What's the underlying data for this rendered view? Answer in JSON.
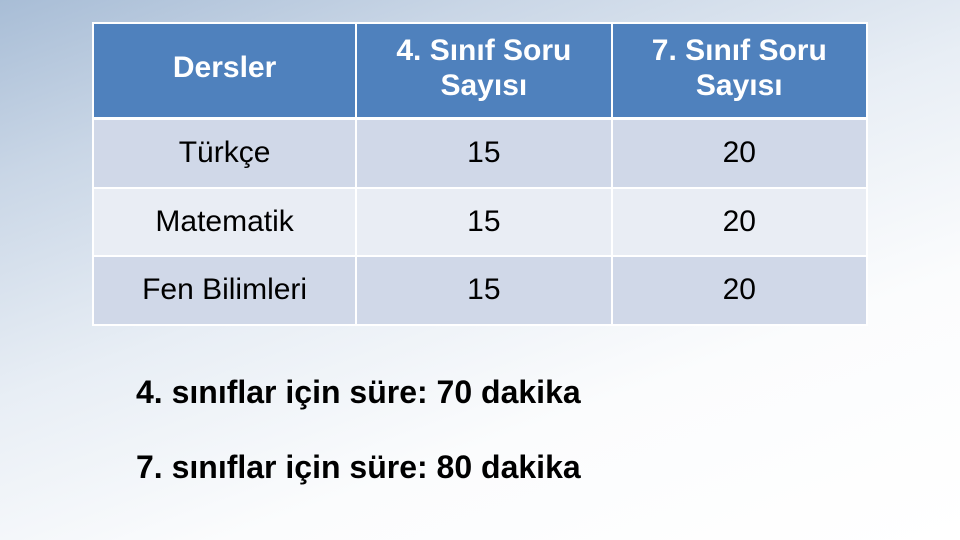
{
  "table": {
    "type": "table",
    "columns": [
      "Dersler",
      "4. Sınıf Soru Sayısı",
      "7. Sınıf Soru Sayısı"
    ],
    "rows": [
      [
        "Türkçe",
        "15",
        "20"
      ],
      [
        "Matematik",
        "15",
        "20"
      ],
      [
        "Fen Bilimleri",
        "15",
        "20"
      ]
    ],
    "header_bg": "#4f81bd",
    "header_fg": "#ffffff",
    "row_odd_bg": "#d0d8e8",
    "row_even_bg": "#e9edf4",
    "border_color": "#ffffff",
    "font_family": "Arial",
    "header_fontsize": 30,
    "cell_fontsize": 30,
    "col_widths_pct": [
      34,
      33,
      33
    ]
  },
  "notes": {
    "line1": "4. sınıflar için süre: 70 dakika",
    "line2": "7. sınıflar için süre: 80 dakika",
    "fontsize": 32,
    "font_weight": "bold",
    "color": "#000000"
  },
  "background": {
    "gradient_from": "#a8bdd6",
    "gradient_to": "#ffffff"
  }
}
